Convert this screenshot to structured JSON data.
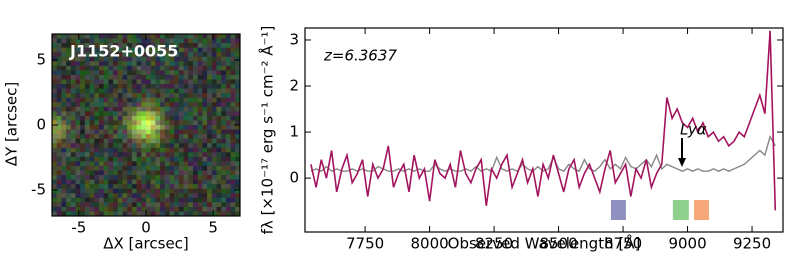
{
  "chart_data": [
    {
      "type": "image",
      "title": "J1152+0055",
      "xlabel": "ΔX [arcsec]",
      "ylabel": "ΔY [arcsec]",
      "xlim": [
        -7,
        7
      ],
      "ylim": [
        -7,
        7
      ],
      "xticks": [
        -5,
        0,
        5
      ],
      "yticks": [
        -5,
        0,
        5
      ]
    },
    {
      "type": "line",
      "xlabel": "Observed Wavelength [Å]",
      "ylabel": "fλ [×10⁻¹⁷ erg s⁻¹ cm⁻² Å⁻¹]",
      "annotations": [
        {
          "text": "z=6.3637"
        },
        {
          "text": "Lyα"
        }
      ],
      "xlim": [
        7517,
        9370
      ],
      "ylim": [
        -1.17,
        3.26
      ],
      "xticks": [
        7750,
        8000,
        8250,
        8500,
        8750,
        9000,
        9250
      ],
      "yticks": [
        0,
        1,
        2,
        3
      ],
      "x": [
        7540,
        7560,
        7580,
        7600,
        7620,
        7640,
        7660,
        7680,
        7700,
        7720,
        7740,
        7760,
        7780,
        7800,
        7820,
        7840,
        7860,
        7880,
        7900,
        7920,
        7940,
        7960,
        7980,
        8000,
        8020,
        8040,
        8060,
        8080,
        8100,
        8120,
        8140,
        8160,
        8180,
        8200,
        8220,
        8240,
        8260,
        8280,
        8300,
        8320,
        8340,
        8360,
        8380,
        8400,
        8420,
        8440,
        8460,
        8480,
        8500,
        8520,
        8540,
        8560,
        8580,
        8600,
        8620,
        8640,
        8660,
        8680,
        8700,
        8720,
        8740,
        8760,
        8780,
        8800,
        8820,
        8840,
        8860,
        8880,
        8900,
        8920,
        8940,
        8960,
        8980,
        9000,
        9020,
        9040,
        9060,
        9080,
        9100,
        9120,
        9140,
        9160,
        9180,
        9200,
        9220,
        9240,
        9260,
        9280,
        9300,
        9320,
        9340
      ],
      "series": [
        {
          "color": "#888888",
          "values": [
            0.15,
            0.2,
            0.15,
            0.25,
            0.15,
            0.2,
            0.15,
            0.15,
            0.2,
            0.15,
            0.2,
            0.15,
            0.15,
            0.25,
            0.2,
            0.15,
            0.15,
            0.2,
            0.15,
            0.2,
            0.15,
            0.2,
            0.15,
            0.15,
            0.3,
            0.2,
            0.15,
            0.2,
            0.15,
            0.15,
            0.2,
            0.15,
            0.25,
            0.15,
            0.2,
            0.15,
            0.45,
            0.2,
            0.15,
            0.2,
            0.15,
            0.3,
            0.2,
            0.15,
            0.25,
            0.15,
            0.2,
            0.45,
            0.2,
            0.15,
            0.3,
            0.2,
            0.15,
            0.4,
            0.2,
            0.15,
            0.25,
            0.4,
            0.2,
            0.3,
            0.2,
            0.45,
            0.25,
            0.2,
            0.3,
            0.4,
            0.25,
            0.5,
            0.2,
            0.3,
            0.25,
            0.2,
            0.15,
            0.2,
            0.15,
            0.2,
            0.15,
            0.15,
            0.2,
            0.15,
            0.2,
            0.15,
            0.2,
            0.25,
            0.3,
            0.4,
            0.5,
            0.6,
            0.5,
            0.9,
            0.7
          ]
        },
        {
          "color": "#a3145e",
          "values": [
            0.3,
            -0.2,
            0.4,
            0.0,
            0.6,
            -0.3,
            0.2,
            0.5,
            -0.1,
            0.1,
            0.4,
            -0.4,
            0.3,
            0.0,
            0.2,
            0.7,
            -0.2,
            0.1,
            0.3,
            -0.3,
            0.5,
            0.0,
            0.2,
            -0.5,
            0.4,
            0.1,
            0.0,
            0.3,
            -0.2,
            0.6,
            0.1,
            -0.1,
            0.2,
            0.4,
            -0.6,
            0.2,
            0.0,
            0.3,
            0.5,
            -0.2,
            0.1,
            0.4,
            -0.1,
            0.2,
            -0.4,
            0.3,
            0.0,
            0.5,
            0.1,
            -0.3,
            0.2,
            0.4,
            -0.2,
            0.1,
            0.3,
            0.0,
            -0.3,
            0.2,
            0.6,
            -0.1,
            0.1,
            0.3,
            -0.4,
            0.2,
            0.0,
            0.4,
            -0.2,
            0.1,
            0.3,
            1.75,
            1.3,
            1.5,
            1.2,
            1.1,
            1.3,
            1.0,
            1.2,
            0.9,
            1.0,
            0.8,
            0.9,
            0.7,
            0.8,
            1.0,
            0.9,
            1.2,
            1.5,
            1.8,
            1.4,
            3.2,
            -0.7
          ]
        }
      ],
      "bands": [
        {
          "xrange": [
            8703,
            8761
          ],
          "color": "#8f8fc0"
        },
        {
          "xrange": [
            8943,
            9005
          ],
          "color": "#8fd08f"
        },
        {
          "xrange": [
            9025,
            9083
          ],
          "color": "#f7a87a"
        }
      ]
    }
  ]
}
